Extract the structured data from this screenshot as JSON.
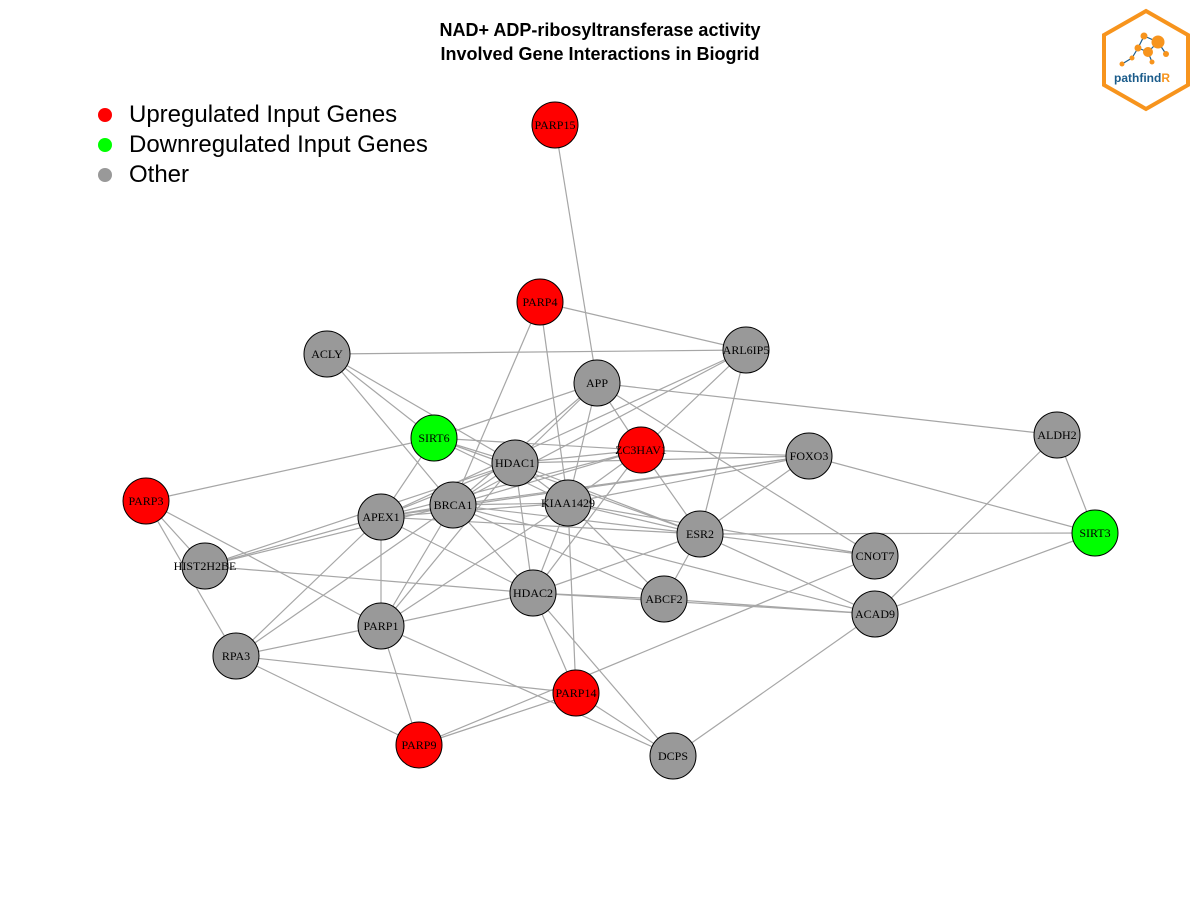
{
  "title": {
    "line1": "NAD+ ADP-ribosyltransferase activity",
    "line2": "Involved Gene Interactions in Biogrid"
  },
  "legend": [
    {
      "label": "Upregulated Input Genes",
      "color": "#ff0000"
    },
    {
      "label": "Downregulated Input Genes",
      "color": "#00ff00"
    },
    {
      "label": "Other",
      "color": "#999999"
    }
  ],
  "logo": {
    "text_main": "pathfind",
    "text_accent": "R",
    "border_color": "#f7941d",
    "text_color": "#1a5b8a"
  },
  "colors": {
    "up": "#ff0000",
    "down": "#00ff00",
    "other": "#999999",
    "edge": "#a6a6a6"
  },
  "nodes": [
    {
      "id": "PARP15",
      "group": "up"
    },
    {
      "id": "PARP4",
      "group": "up"
    },
    {
      "id": "ACLY",
      "group": "other"
    },
    {
      "id": "APP",
      "group": "other"
    },
    {
      "id": "ARL6IP5",
      "group": "other"
    },
    {
      "id": "SIRT6",
      "group": "down"
    },
    {
      "id": "ZC3HAV1",
      "group": "up"
    },
    {
      "id": "HDAC1",
      "group": "other"
    },
    {
      "id": "FOXO3",
      "group": "other"
    },
    {
      "id": "ALDH2",
      "group": "other"
    },
    {
      "id": "PARP3",
      "group": "up"
    },
    {
      "id": "APEX1",
      "group": "other"
    },
    {
      "id": "BRCA1",
      "group": "other"
    },
    {
      "id": "KIAA1429",
      "group": "other"
    },
    {
      "id": "ESR2",
      "group": "other"
    },
    {
      "id": "SIRT3",
      "group": "down"
    },
    {
      "id": "HIST2H2BE",
      "group": "other"
    },
    {
      "id": "CNOT7",
      "group": "other"
    },
    {
      "id": "HDAC2",
      "group": "other"
    },
    {
      "id": "ABCF2",
      "group": "other"
    },
    {
      "id": "ACAD9",
      "group": "other"
    },
    {
      "id": "PARP1",
      "group": "other"
    },
    {
      "id": "RPA3",
      "group": "other"
    },
    {
      "id": "PARP14",
      "group": "up"
    },
    {
      "id": "PARP9",
      "group": "up"
    },
    {
      "id": "DCPS",
      "group": "other"
    }
  ],
  "edges": [
    [
      "PARP15",
      "APP"
    ],
    [
      "PARP4",
      "ARL6IP5"
    ],
    [
      "PARP4",
      "KIAA1429"
    ],
    [
      "PARP4",
      "BRCA1"
    ],
    [
      "ACLY",
      "SIRT6"
    ],
    [
      "ACLY",
      "ARL6IP5"
    ],
    [
      "ACLY",
      "HDAC1"
    ],
    [
      "ACLY",
      "BRCA1"
    ],
    [
      "APP",
      "SIRT6"
    ],
    [
      "APP",
      "ZC3HAV1"
    ],
    [
      "APP",
      "HDAC1"
    ],
    [
      "APP",
      "KIAA1429"
    ],
    [
      "APP",
      "CNOT7"
    ],
    [
      "APP",
      "ALDH2"
    ],
    [
      "APP",
      "BRCA1"
    ],
    [
      "ARL6IP5",
      "ZC3HAV1"
    ],
    [
      "ARL6IP5",
      "ESR2"
    ],
    [
      "ARL6IP5",
      "APEX1"
    ],
    [
      "ARL6IP5",
      "BRCA1"
    ],
    [
      "SIRT6",
      "PARP3"
    ],
    [
      "SIRT6",
      "HDAC1"
    ],
    [
      "SIRT6",
      "APEX1"
    ],
    [
      "SIRT6",
      "KIAA1429"
    ],
    [
      "SIRT6",
      "ESR2"
    ],
    [
      "SIRT6",
      "ZC3HAV1"
    ],
    [
      "ZC3HAV1",
      "FOXO3"
    ],
    [
      "ZC3HAV1",
      "HDAC1"
    ],
    [
      "ZC3HAV1",
      "BRCA1"
    ],
    [
      "ZC3HAV1",
      "KIAA1429"
    ],
    [
      "ZC3HAV1",
      "APEX1"
    ],
    [
      "ZC3HAV1",
      "ESR2"
    ],
    [
      "ZC3HAV1",
      "HDAC2"
    ],
    [
      "HDAC1",
      "FOXO3"
    ],
    [
      "HDAC1",
      "BRCA1"
    ],
    [
      "HDAC1",
      "KIAA1429"
    ],
    [
      "HDAC1",
      "APEX1"
    ],
    [
      "HDAC1",
      "HDAC2"
    ],
    [
      "HDAC1",
      "ESR2"
    ],
    [
      "HDAC1",
      "HIST2H2BE"
    ],
    [
      "HDAC1",
      "PARP1"
    ],
    [
      "FOXO3",
      "SIRT3"
    ],
    [
      "FOXO3",
      "ESR2"
    ],
    [
      "FOXO3",
      "BRCA1"
    ],
    [
      "FOXO3",
      "KIAA1429"
    ],
    [
      "FOXO3",
      "APEX1"
    ],
    [
      "ALDH2",
      "SIRT3"
    ],
    [
      "ALDH2",
      "ACAD9"
    ],
    [
      "PARP3",
      "HIST2H2BE"
    ],
    [
      "PARP3",
      "RPA3"
    ],
    [
      "PARP3",
      "PARP1"
    ],
    [
      "APEX1",
      "BRCA1"
    ],
    [
      "APEX1",
      "KIAA1429"
    ],
    [
      "APEX1",
      "HDAC2"
    ],
    [
      "APEX1",
      "PARP1"
    ],
    [
      "APEX1",
      "RPA3"
    ],
    [
      "APEX1",
      "ESR2"
    ],
    [
      "APEX1",
      "HIST2H2BE"
    ],
    [
      "BRCA1",
      "KIAA1429"
    ],
    [
      "BRCA1",
      "HDAC2"
    ],
    [
      "BRCA1",
      "ESR2"
    ],
    [
      "BRCA1",
      "PARP1"
    ],
    [
      "BRCA1",
      "ABCF2"
    ],
    [
      "BRCA1",
      "ACAD9"
    ],
    [
      "BRCA1",
      "RPA3"
    ],
    [
      "BRCA1",
      "HIST2H2BE"
    ],
    [
      "KIAA1429",
      "ESR2"
    ],
    [
      "KIAA1429",
      "HDAC2"
    ],
    [
      "KIAA1429",
      "ABCF2"
    ],
    [
      "KIAA1429",
      "PARP1"
    ],
    [
      "KIAA1429",
      "PARP14"
    ],
    [
      "KIAA1429",
      "CNOT7"
    ],
    [
      "ESR2",
      "SIRT3"
    ],
    [
      "ESR2",
      "CNOT7"
    ],
    [
      "ESR2",
      "ACAD9"
    ],
    [
      "ESR2",
      "HDAC2"
    ],
    [
      "ESR2",
      "ABCF2"
    ],
    [
      "SIRT3",
      "ACAD9"
    ],
    [
      "HIST2H2BE",
      "HDAC2"
    ],
    [
      "CNOT7",
      "PARP9"
    ],
    [
      "HDAC2",
      "ABCF2"
    ],
    [
      "HDAC2",
      "ACAD9"
    ],
    [
      "HDAC2",
      "PARP1"
    ],
    [
      "HDAC2",
      "PARP14"
    ],
    [
      "HDAC2",
      "DCPS"
    ],
    [
      "ABCF2",
      "ACAD9"
    ],
    [
      "PARP1",
      "RPA3"
    ],
    [
      "PARP1",
      "PARP9"
    ],
    [
      "PARP1",
      "DCPS"
    ],
    [
      "RPA3",
      "PARP14"
    ],
    [
      "RPA3",
      "PARP9"
    ],
    [
      "PARP14",
      "PARP9"
    ],
    [
      "PARP14",
      "DCPS"
    ],
    [
      "ACAD9",
      "DCPS"
    ]
  ]
}
